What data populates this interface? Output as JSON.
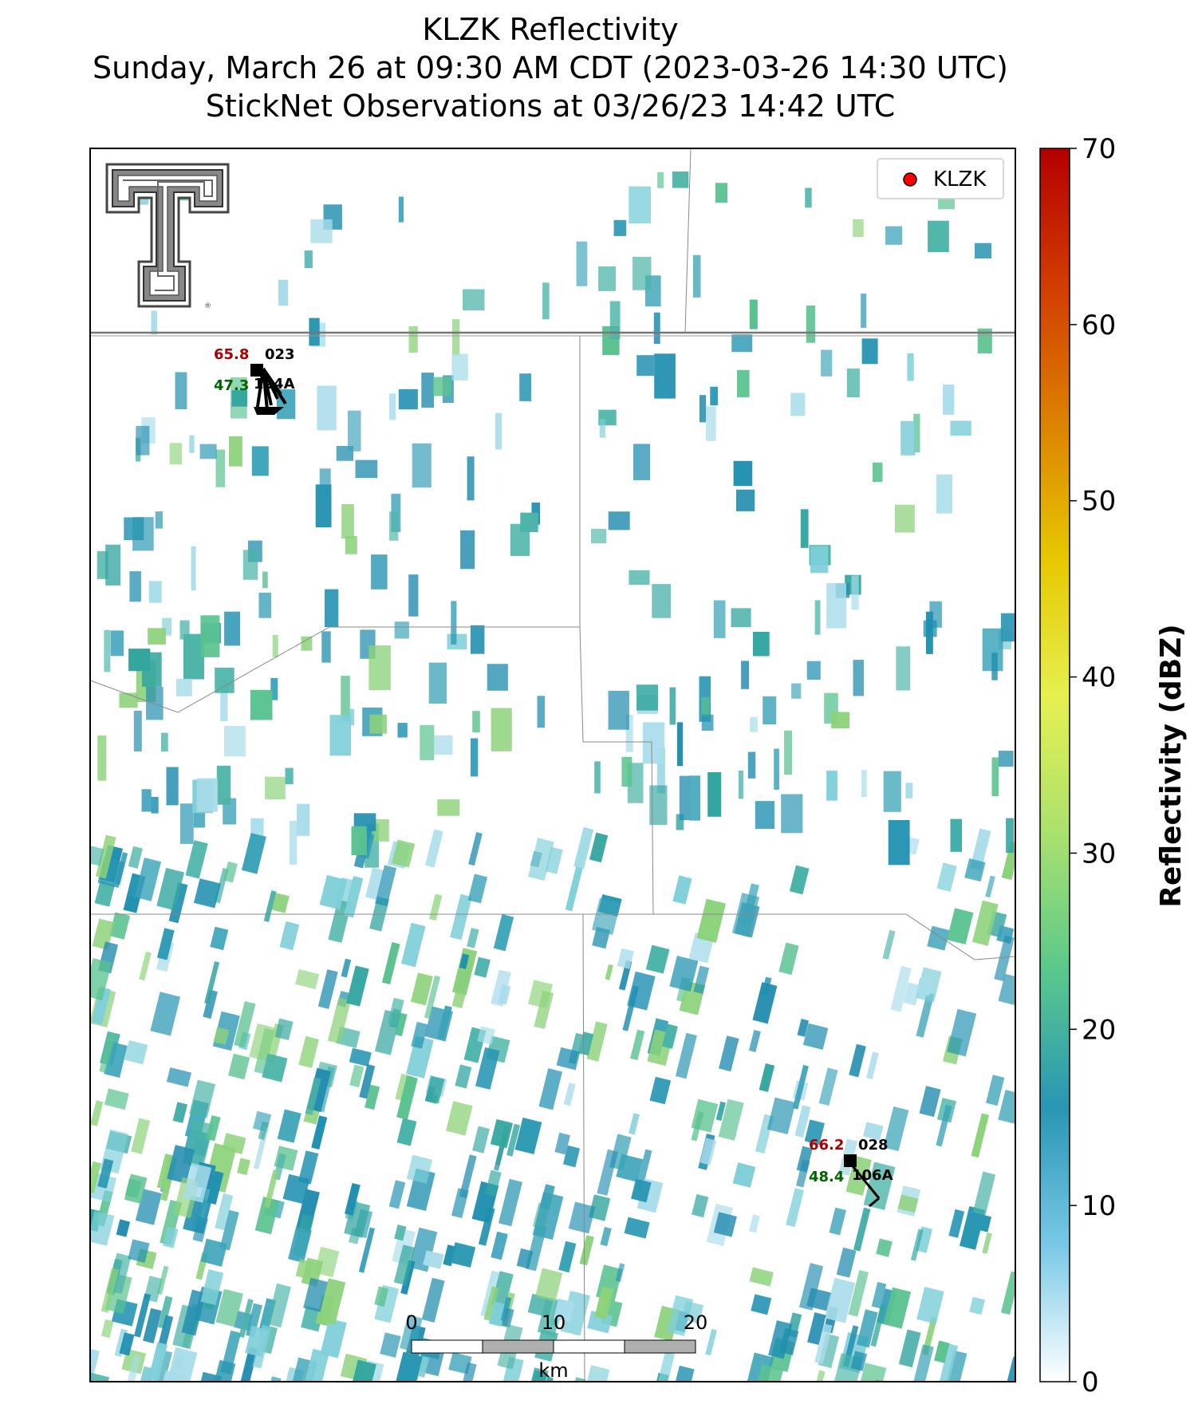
{
  "title": {
    "line1": "KLZK Reflectivity",
    "line2": "Sunday, March 26 at 09:30 AM CDT (2023-03-26 14:30 UTC)",
    "line3": "StickNet Observations at 03/26/23 14:42 UTC"
  },
  "legend": {
    "label": "KLZK",
    "marker_color": "#ff0000"
  },
  "colorbar": {
    "label": "Reflectivity (dBZ)",
    "ticks": [
      "0",
      "10",
      "20",
      "30",
      "40",
      "50",
      "60",
      "70"
    ],
    "range": [
      0,
      70
    ],
    "stops": [
      "#ffffff",
      "#78c8e6",
      "#2896b4",
      "#5ac88c",
      "#aae16e",
      "#e6f050",
      "#e6c800",
      "#dc8200",
      "#d23c00",
      "#b40000"
    ]
  },
  "scale_bar": {
    "ticks": [
      "0",
      "10",
      "20"
    ],
    "unit": "km"
  },
  "stations": [
    {
      "temp": "65.8",
      "dewpoint": "47.3",
      "id": "023",
      "probe": "124A",
      "temp_color": "#aa0000",
      "dew_color": "#006400"
    },
    {
      "temp": "66.2",
      "dewpoint": "48.4",
      "id": "028",
      "probe": "106A",
      "temp_color": "#aa0000",
      "dew_color": "#006400"
    }
  ],
  "logo": {
    "name": "texas-tech-double-t-logo",
    "mark": "®"
  }
}
